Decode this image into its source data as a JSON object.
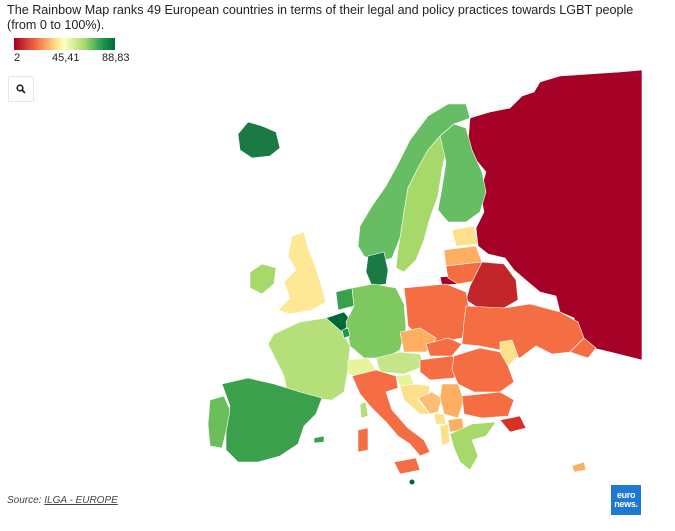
{
  "title": "The Rainbow Map ranks 49 European countries in terms of their legal and policy practices towards LGBT people (from 0 to 100%).",
  "legend": {
    "min_label": "2",
    "mid_label": "45,41",
    "max_label": "88,83",
    "min_color": "#a50026",
    "mid_color": "#ffffbf",
    "max_color": "#006837"
  },
  "zoom_icon": "search-icon",
  "source": {
    "prefix": "Source: ",
    "link_text": "ILGA - EUROPE"
  },
  "logo": {
    "line1": "euro",
    "line2": "news."
  },
  "colors": {
    "dark_red": "#a50026",
    "red": "#d73027",
    "orange": "#f46d43",
    "light_orange": "#fdae61",
    "yellow": "#fee08b",
    "pale_yellow": "#ffffbf",
    "light_green": "#a6d96a",
    "green": "#66bd63",
    "mid_green": "#3aa04b",
    "dark_green": "#1a9850",
    "darkest_green": "#006837"
  }
}
